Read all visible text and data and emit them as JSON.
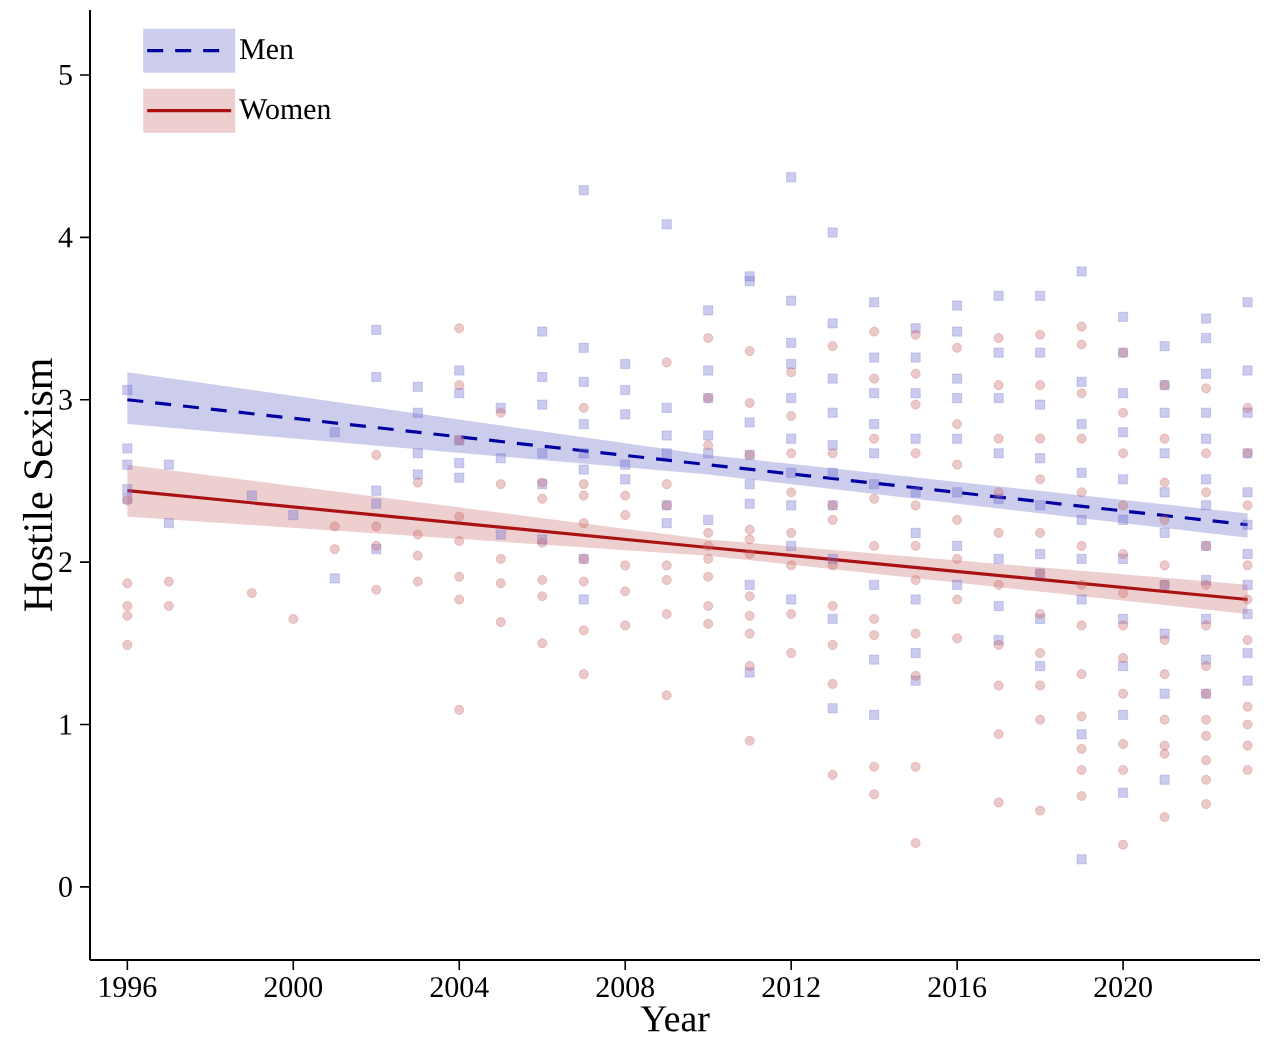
{
  "chart_data": {
    "type": "scatter",
    "xlabel": "Year",
    "ylabel": "Hostile Sexism",
    "xlim": [
      1995.1,
      2023.3
    ],
    "ylim": [
      -0.45,
      5.4
    ],
    "xticks": [
      1996,
      2000,
      2004,
      2008,
      2012,
      2016,
      2020
    ],
    "yticks": [
      0,
      1,
      2,
      3,
      4,
      5
    ],
    "legend": "top left",
    "series": [
      {
        "color": "#6b6bd0",
        "marker": "square",
        "x": [
          1996,
          1996,
          1996,
          1996,
          1996,
          1997,
          1997,
          1999,
          2000,
          2001,
          2001,
          2002,
          2002,
          2002,
          2002,
          2002,
          2003,
          2003,
          2003,
          2003,
          2004,
          2004,
          2004,
          2004,
          2004,
          2005,
          2005,
          2005,
          2006,
          2006,
          2006,
          2006,
          2006,
          2006,
          2007,
          2007,
          2007,
          2007,
          2007,
          2007,
          2007,
          2007,
          2008,
          2008,
          2008,
          2008,
          2008,
          2009,
          2009,
          2009,
          2009,
          2009,
          2009,
          2010,
          2010,
          2010,
          2010,
          2010,
          2010,
          2011,
          2011,
          2011,
          2011,
          2011,
          2011,
          2011,
          2011,
          2012,
          2012,
          2012,
          2012,
          2012,
          2012,
          2012,
          2012,
          2012,
          2012,
          2013,
          2013,
          2013,
          2013,
          2013,
          2013,
          2013,
          2013,
          2013,
          2013,
          2014,
          2014,
          2014,
          2014,
          2014,
          2014,
          2014,
          2014,
          2014,
          2015,
          2015,
          2015,
          2015,
          2015,
          2015,
          2015,
          2015,
          2015,
          2016,
          2016,
          2016,
          2016,
          2016,
          2016,
          2016,
          2016,
          2017,
          2017,
          2017,
          2017,
          2017,
          2017,
          2017,
          2017,
          2018,
          2018,
          2018,
          2018,
          2018,
          2018,
          2018,
          2018,
          2018,
          2019,
          2019,
          2019,
          2019,
          2019,
          2019,
          2019,
          2019,
          2019,
          2020,
          2020,
          2020,
          2020,
          2020,
          2020,
          2020,
          2020,
          2020,
          2020,
          2020,
          2021,
          2021,
          2021,
          2021,
          2021,
          2021,
          2021,
          2021,
          2021,
          2021,
          2022,
          2022,
          2022,
          2022,
          2022,
          2022,
          2022,
          2022,
          2022,
          2022,
          2022,
          2022,
          2023,
          2023,
          2023,
          2023,
          2023,
          2023,
          2023,
          2023,
          2023,
          2023,
          2023
        ],
        "values": [
          3.06,
          2.7,
          2.6,
          2.45,
          2.39,
          2.6,
          2.24,
          2.41,
          2.29,
          2.8,
          1.9,
          3.43,
          3.14,
          2.44,
          2.36,
          2.08,
          3.08,
          2.92,
          2.67,
          2.54,
          3.18,
          3.04,
          2.75,
          2.61,
          2.52,
          2.95,
          2.64,
          2.17,
          3.42,
          3.14,
          2.97,
          2.67,
          2.48,
          2.14,
          4.29,
          3.32,
          3.11,
          2.85,
          2.67,
          2.57,
          2.02,
          1.77,
          3.22,
          3.06,
          2.91,
          2.6,
          2.51,
          4.08,
          2.95,
          2.78,
          2.67,
          2.35,
          2.24,
          3.55,
          3.18,
          3.01,
          2.78,
          2.67,
          2.26,
          3.76,
          3.73,
          2.86,
          2.66,
          2.48,
          2.36,
          1.86,
          1.32,
          4.37,
          3.61,
          3.35,
          3.22,
          3.01,
          2.76,
          2.55,
          2.35,
          2.1,
          1.77,
          4.03,
          3.47,
          3.13,
          2.92,
          2.72,
          2.55,
          2.35,
          2.02,
          1.65,
          1.1,
          3.6,
          3.26,
          3.04,
          2.85,
          2.67,
          2.48,
          1.86,
          1.4,
          1.06,
          3.44,
          3.26,
          3.04,
          2.76,
          2.43,
          2.18,
          1.77,
          1.44,
          1.27,
          3.58,
          3.42,
          3.13,
          3.01,
          2.76,
          2.43,
          2.1,
          1.86,
          3.64,
          3.29,
          3.01,
          2.67,
          2.39,
          2.02,
          1.73,
          1.52,
          3.64,
          3.29,
          2.97,
          2.64,
          2.35,
          2.05,
          1.93,
          1.65,
          1.36,
          3.79,
          3.11,
          2.85,
          2.55,
          2.26,
          2.02,
          1.77,
          0.94,
          0.17,
          3.51,
          3.29,
          3.04,
          2.8,
          2.51,
          2.26,
          2.02,
          1.65,
          1.36,
          1.06,
          0.58,
          3.33,
          3.09,
          2.92,
          2.67,
          2.43,
          2.18,
          1.86,
          1.56,
          1.19,
          0.66,
          3.5,
          3.38,
          3.16,
          2.92,
          2.76,
          2.51,
          2.35,
          2.1,
          1.89,
          1.65,
          1.4,
          1.19,
          3.6,
          3.18,
          2.92,
          2.67,
          2.43,
          2.23,
          2.05,
          1.86,
          1.68,
          1.44,
          1.27
        ]
      },
      {
        "color": "#c86464",
        "marker": "circle",
        "x": [
          1996,
          1996,
          1996,
          1996,
          1996,
          1997,
          1997,
          1999,
          2000,
          2001,
          2001,
          2002,
          2002,
          2002,
          2002,
          2003,
          2003,
          2003,
          2003,
          2004,
          2004,
          2004,
          2004,
          2004,
          2004,
          2004,
          2004,
          2005,
          2005,
          2005,
          2005,
          2005,
          2006,
          2006,
          2006,
          2006,
          2006,
          2006,
          2007,
          2007,
          2007,
          2007,
          2007,
          2007,
          2007,
          2007,
          2008,
          2008,
          2008,
          2008,
          2008,
          2009,
          2009,
          2009,
          2009,
          2009,
          2009,
          2009,
          2010,
          2010,
          2010,
          2010,
          2010,
          2010,
          2010,
          2010,
          2010,
          2011,
          2011,
          2011,
          2011,
          2011,
          2011,
          2011,
          2011,
          2011,
          2011,
          2011,
          2012,
          2012,
          2012,
          2012,
          2012,
          2012,
          2012,
          2012,
          2013,
          2013,
          2013,
          2013,
          2013,
          2013,
          2013,
          2013,
          2013,
          2014,
          2014,
          2014,
          2014,
          2014,
          2014,
          2014,
          2014,
          2014,
          2015,
          2015,
          2015,
          2015,
          2015,
          2015,
          2015,
          2015,
          2015,
          2015,
          2015,
          2016,
          2016,
          2016,
          2016,
          2016,
          2016,
          2016,
          2017,
          2017,
          2017,
          2017,
          2017,
          2017,
          2017,
          2017,
          2017,
          2017,
          2018,
          2018,
          2018,
          2018,
          2018,
          2018,
          2018,
          2018,
          2018,
          2018,
          2018,
          2019,
          2019,
          2019,
          2019,
          2019,
          2019,
          2019,
          2019,
          2019,
          2019,
          2019,
          2019,
          2019,
          2020,
          2020,
          2020,
          2020,
          2020,
          2020,
          2020,
          2020,
          2020,
          2020,
          2020,
          2020,
          2021,
          2021,
          2021,
          2021,
          2021,
          2021,
          2021,
          2021,
          2021,
          2021,
          2021,
          2021,
          2022,
          2022,
          2022,
          2022,
          2022,
          2022,
          2022,
          2022,
          2022,
          2022,
          2022,
          2022,
          2022,
          2023,
          2023,
          2023,
          2023,
          2023,
          2023,
          2023,
          2023,
          2023,
          2023
        ],
        "values": [
          2.38,
          1.87,
          1.73,
          1.67,
          1.49,
          1.88,
          1.73,
          1.81,
          1.65,
          2.22,
          2.08,
          2.66,
          2.22,
          2.1,
          1.83,
          2.49,
          2.17,
          2.04,
          1.88,
          3.44,
          3.09,
          2.75,
          2.28,
          2.13,
          1.91,
          1.77,
          1.09,
          2.92,
          2.48,
          2.02,
          1.87,
          1.63,
          2.49,
          2.39,
          2.12,
          1.89,
          1.79,
          1.5,
          2.95,
          2.48,
          2.41,
          2.24,
          2.02,
          1.88,
          1.58,
          1.31,
          2.41,
          2.29,
          1.98,
          1.82,
          1.61,
          3.23,
          2.48,
          2.35,
          1.98,
          1.89,
          1.68,
          1.18,
          3.38,
          3.01,
          2.72,
          2.18,
          2.1,
          2.02,
          1.91,
          1.73,
          1.62,
          3.3,
          2.98,
          2.66,
          2.2,
          2.14,
          2.05,
          1.79,
          1.67,
          1.56,
          1.36,
          0.9,
          3.17,
          2.9,
          2.67,
          2.43,
          2.18,
          1.98,
          1.68,
          1.44,
          3.33,
          2.67,
          2.35,
          2.26,
          1.98,
          1.73,
          1.49,
          1.25,
          0.69,
          3.42,
          3.13,
          2.76,
          2.39,
          2.1,
          1.65,
          1.55,
          0.74,
          0.57,
          3.4,
          3.16,
          2.97,
          2.67,
          2.35,
          2.1,
          1.89,
          1.56,
          1.3,
          0.74,
          0.27,
          3.32,
          2.85,
          2.6,
          2.26,
          2.02,
          1.77,
          1.53,
          3.38,
          3.09,
          2.76,
          2.43,
          2.18,
          1.86,
          1.49,
          1.24,
          0.94,
          0.52,
          3.4,
          3.09,
          2.76,
          2.51,
          2.18,
          1.93,
          1.68,
          1.44,
          1.24,
          1.03,
          0.47,
          3.45,
          3.34,
          3.04,
          2.76,
          2.43,
          2.1,
          1.86,
          1.61,
          1.31,
          1.05,
          0.85,
          0.72,
          0.56,
          3.29,
          2.92,
          2.67,
          2.35,
          2.05,
          1.81,
          1.61,
          1.41,
          1.19,
          0.88,
          0.72,
          0.26,
          3.09,
          2.76,
          2.49,
          2.26,
          1.98,
          1.86,
          1.52,
          1.31,
          1.03,
          0.87,
          0.82,
          0.43,
          3.07,
          2.67,
          2.43,
          2.1,
          1.86,
          1.61,
          1.36,
          1.19,
          1.03,
          0.93,
          0.78,
          0.66,
          0.51,
          2.95,
          2.67,
          2.35,
          1.98,
          1.77,
          1.52,
          1.11,
          1.0,
          0.87,
          0.72
        ]
      },
      {
        "type": "line",
        "name": "Men",
        "color": "#0000a0",
        "marker": "none",
        "line_style": "dashed",
        "x": [
          1996,
          2010,
          2023
        ],
        "values": [
          3.0,
          2.6,
          2.23
        ],
        "lower": [
          2.85,
          2.54,
          2.15
        ],
        "upper": [
          3.17,
          2.66,
          2.3
        ]
      },
      {
        "type": "line",
        "name": "Women",
        "color": "#aa1111",
        "marker": "none",
        "line_style": "solid",
        "x": [
          1996,
          2010,
          2023
        ],
        "values": [
          2.44,
          2.09,
          1.77
        ],
        "lower": [
          2.28,
          2.04,
          1.68
        ],
        "upper": [
          2.6,
          2.14,
          1.86
        ]
      }
    ]
  }
}
